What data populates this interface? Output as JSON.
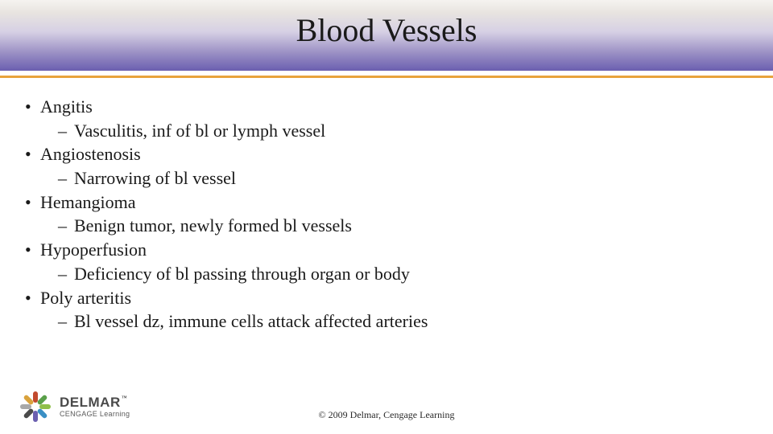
{
  "title": "Blood Vessels",
  "header": {
    "gradient_start": "#f5f3f0",
    "gradient_end": "#6b5fb0",
    "accent_line_color": "#e8a33d"
  },
  "items": [
    {
      "term": "Angitis",
      "def": "Vasculitis, inf of bl or lymph vessel"
    },
    {
      "term": "Angiostenosis",
      "def": "Narrowing of bl vessel"
    },
    {
      "term": "Hemangioma",
      "def": "Benign tumor, newly formed bl vessels"
    },
    {
      "term": "Hypoperfusion",
      "def": "Deficiency of bl passing through organ or body"
    },
    {
      "term": "Poly arteritis",
      "def": "Bl vessel dz, immune cells attack affected arteries"
    }
  ],
  "logo": {
    "brand_top": "DELMAR",
    "brand_bottom": "CENGAGE Learning",
    "tm": "™",
    "petal_colors": [
      "#8fbf4a",
      "#3a8fc4",
      "#6b5fb0",
      "#4a4a4a",
      "#a8a8a8",
      "#d9a23d",
      "#c24a2e",
      "#5aa04a"
    ]
  },
  "copyright": "© 2009 Delmar, Cengage Learning",
  "typography": {
    "title_fontsize": 40,
    "body_fontsize": 22,
    "body_color": "#1a1a1a",
    "footer_fontsize": 12
  }
}
